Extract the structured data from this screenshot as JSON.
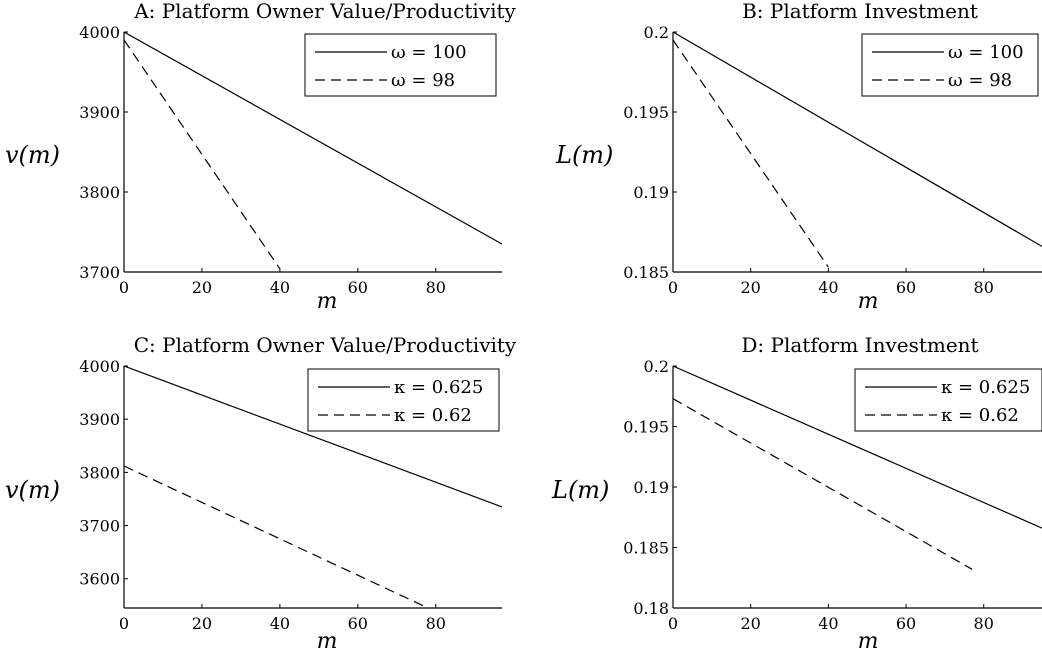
{
  "chart_data": [
    {
      "id": "A",
      "type": "line",
      "title": "A: Platform Owner Value/Productivity",
      "xlabel": "m",
      "ylabel": "v(m)",
      "xlim": [
        0,
        97
      ],
      "ylim": [
        3700,
        4000
      ],
      "xticks": [
        0,
        20,
        40,
        60,
        80
      ],
      "yticks": [
        3700,
        3800,
        3900,
        4000
      ],
      "ytick_labels": [
        "3700",
        "3800",
        "3900",
        "4000"
      ],
      "legend": "top-right",
      "series": [
        {
          "name": "ω = 100",
          "style": "solid",
          "x": [
            0,
            97
          ],
          "y": [
            4000,
            3735
          ]
        },
        {
          "name": "ω = 98",
          "style": "dashed",
          "x": [
            0,
            40
          ],
          "y": [
            3990,
            3704
          ]
        }
      ]
    },
    {
      "id": "B",
      "type": "line",
      "title": "B: Platform Investment",
      "xlabel": "m",
      "ylabel": "L(m)",
      "xlim": [
        0,
        95
      ],
      "ylim": [
        0.185,
        0.2
      ],
      "xticks": [
        0,
        20,
        40,
        60,
        80
      ],
      "yticks": [
        0.185,
        0.19,
        0.195,
        0.2
      ],
      "ytick_labels": [
        "0.185",
        "0.19",
        "0.195",
        "0.2"
      ],
      "legend": "top-right",
      "series": [
        {
          "name": "ω = 100",
          "style": "solid",
          "x": [
            0,
            95
          ],
          "y": [
            0.2,
            0.1866
          ]
        },
        {
          "name": "ω = 98",
          "style": "dashed",
          "x": [
            0,
            40
          ],
          "y": [
            0.1995,
            0.1853
          ]
        }
      ]
    },
    {
      "id": "C",
      "type": "line",
      "title": "C: Platform Owner Value/Productivity",
      "xlabel": "m",
      "ylabel": "v(m)",
      "xlim": [
        0,
        97
      ],
      "ylim": [
        3545,
        4000
      ],
      "xticks": [
        0,
        20,
        40,
        60,
        80
      ],
      "yticks": [
        3600,
        3700,
        3800,
        3900,
        4000
      ],
      "ytick_labels": [
        "3600",
        "3700",
        "3800",
        "3900",
        "4000"
      ],
      "legend": "top-right",
      "series": [
        {
          "name": "κ = 0.625",
          "style": "solid",
          "x": [
            0,
            97
          ],
          "y": [
            4000,
            3735
          ]
        },
        {
          "name": "κ = 0.62",
          "style": "dashed",
          "x": [
            0,
            78
          ],
          "y": [
            3812,
            3545
          ]
        }
      ]
    },
    {
      "id": "D",
      "type": "line",
      "title": "D: Platform Investment",
      "xlabel": "m",
      "ylabel": "L(m)",
      "xlim": [
        0,
        95
      ],
      "ylim": [
        0.18,
        0.2
      ],
      "xticks": [
        0,
        20,
        40,
        60,
        80
      ],
      "yticks": [
        0.18,
        0.185,
        0.19,
        0.195,
        0.2
      ],
      "ytick_labels": [
        "0.18",
        "0.185",
        "0.19",
        "0.195",
        "0.2"
      ],
      "legend": "top-right",
      "series": [
        {
          "name": "κ = 0.625",
          "style": "solid",
          "x": [
            0,
            95
          ],
          "y": [
            0.2,
            0.1866
          ]
        },
        {
          "name": "κ = 0.62",
          "style": "dashed",
          "x": [
            0,
            77
          ],
          "y": [
            0.1973,
            0.1832
          ]
        }
      ]
    }
  ]
}
